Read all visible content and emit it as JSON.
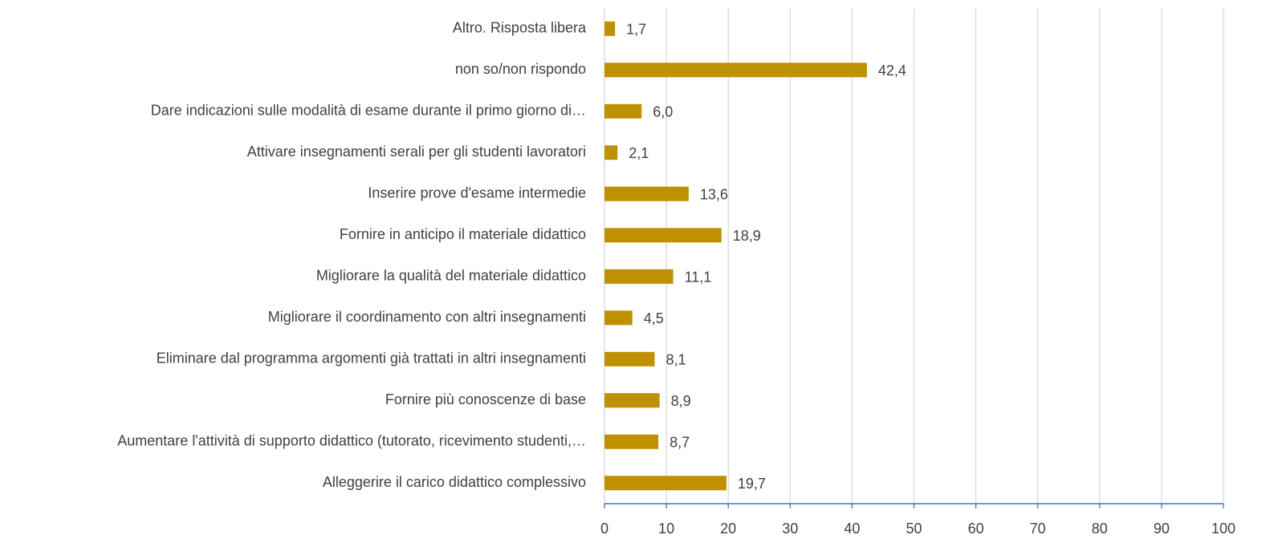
{
  "chart_data": {
    "type": "barh",
    "categories": [
      "Altro. Risposta libera",
      "non so/non rispondo",
      "Dare indicazioni sulle modalità di esame durante il primo giorno di…",
      "Attivare insegnamenti serali per gli studenti lavoratori",
      "Inserire prove d'esame intermedie",
      "Fornire in anticipo il materiale didattico",
      "Migliorare la qualità del materiale didattico",
      "Migliorare il coordinamento con altri insegnamenti",
      "Eliminare dal programma argomenti già trattati in altri insegnamenti",
      "Fornire più conoscenze di base",
      "Aumentare l'attività di supporto didattico (tutorato, ricevimento studenti,…",
      "Alleggerire il carico didattico complessivo"
    ],
    "values": [
      1.7,
      42.4,
      6.0,
      2.1,
      13.6,
      18.9,
      11.1,
      4.5,
      8.1,
      8.9,
      8.7,
      19.7
    ],
    "value_labels": [
      "1,7",
      "42,4",
      "6,0",
      "2,1",
      "13,6",
      "18,9",
      "11,1",
      "4,5",
      "8,1",
      "8,9",
      "8,7",
      "19,7"
    ],
    "color": "#bf9000",
    "xlim": [
      0,
      100
    ],
    "xticks": [
      0,
      10,
      20,
      30,
      40,
      50,
      60,
      70,
      80,
      90,
      100
    ],
    "grid": true
  }
}
